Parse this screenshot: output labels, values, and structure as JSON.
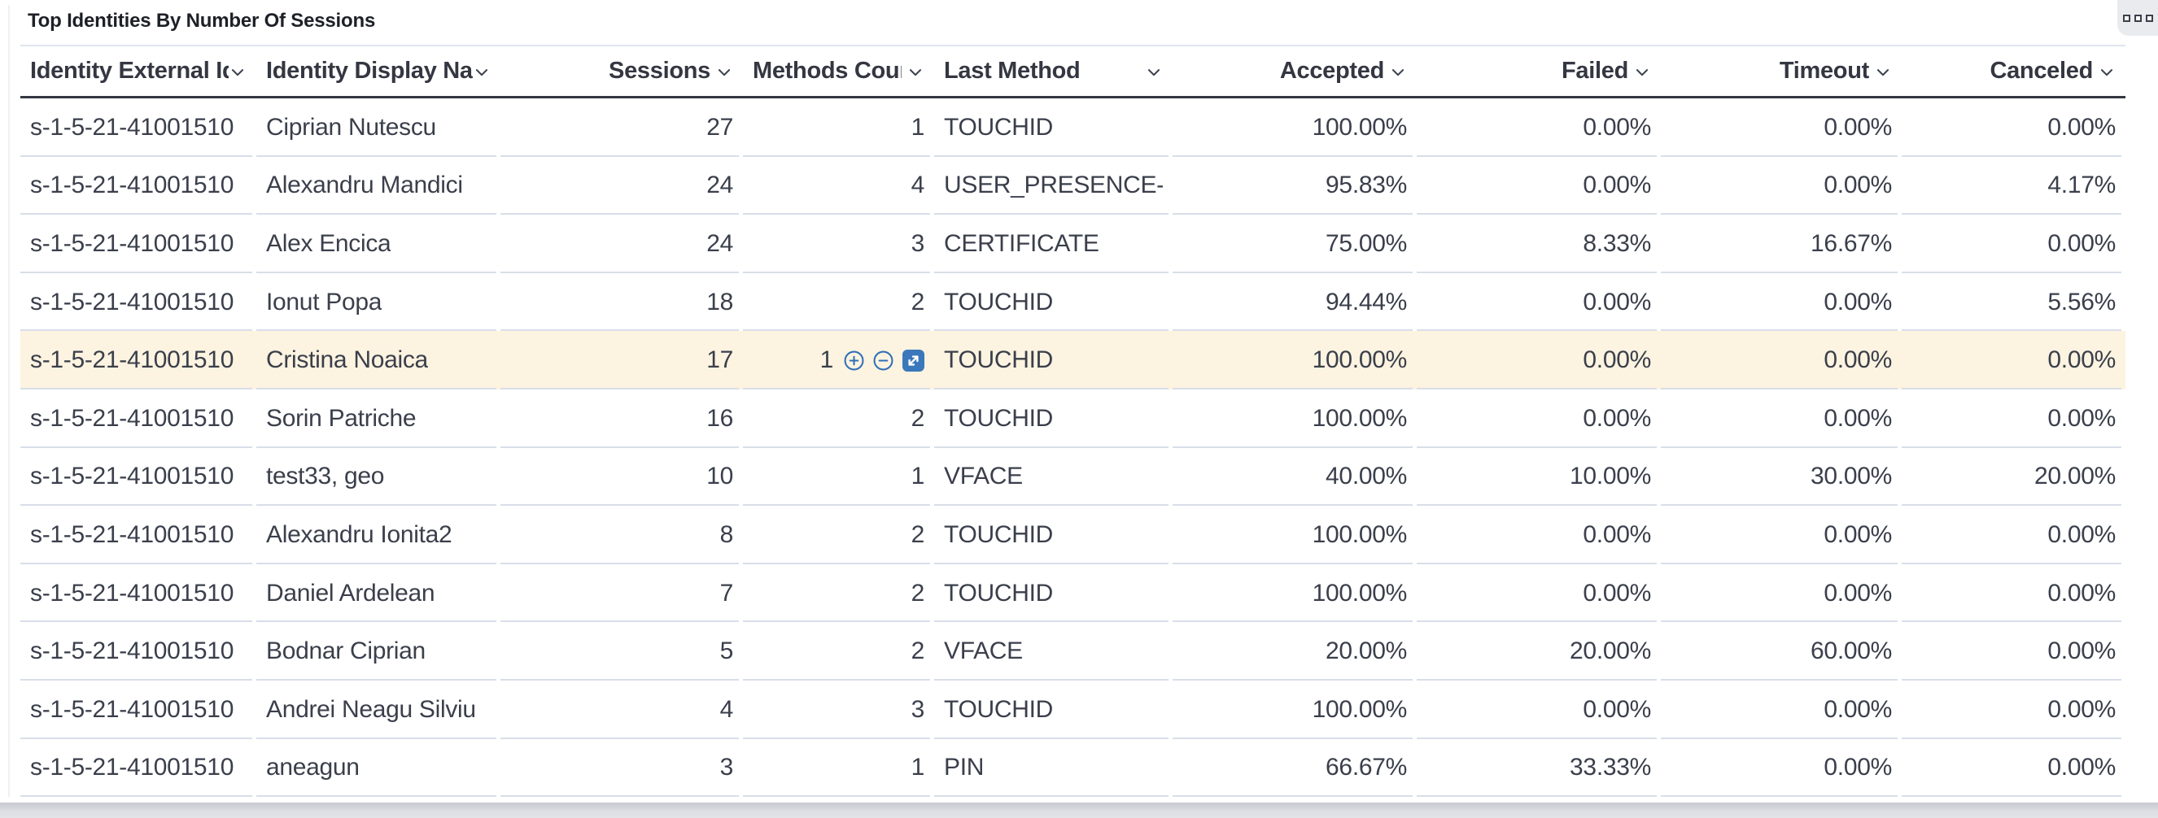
{
  "panel": {
    "title": "Top Identities By Number Of Sessions",
    "options_button_icon": "boxes-menu-icon"
  },
  "colors": {
    "accent_blue": "#2f6fb7",
    "expand_button_fill": "#3a78bb",
    "highlight_row_bg": "#fcf3e0",
    "header_underline": "#343741",
    "row_divider": "#d8dee9",
    "text": "#3a3f4b"
  },
  "table": {
    "columns": [
      {
        "id": "identity-external-id",
        "label": "Identity External Id",
        "align": "left"
      },
      {
        "id": "identity-display-name",
        "label": "Identity Display Name",
        "align": "left"
      },
      {
        "id": "sessions",
        "label": "Sessions",
        "align": "right"
      },
      {
        "id": "methods-count",
        "label": "Methods Count",
        "align": "right"
      },
      {
        "id": "last-method",
        "label": "Last Method",
        "align": "left"
      },
      {
        "id": "accepted",
        "label": "Accepted",
        "align": "right"
      },
      {
        "id": "failed",
        "label": "Failed",
        "align": "right"
      },
      {
        "id": "timeout",
        "label": "Timeout",
        "align": "right"
      },
      {
        "id": "canceled",
        "label": "Canceled",
        "align": "right"
      }
    ],
    "rows": [
      {
        "cells": [
          "s-1-5-21-41001510",
          "Ciprian Nutescu",
          "27",
          "1",
          "TOUCHID",
          "100.00%",
          "0.00%",
          "0.00%",
          "0.00%"
        ]
      },
      {
        "cells": [
          "s-1-5-21-41001510",
          "Alexandru Mandici",
          "24",
          "4",
          "USER_PRESENCE-TOUCHID",
          "95.83%",
          "0.00%",
          "0.00%",
          "4.17%"
        ]
      },
      {
        "cells": [
          "s-1-5-21-41001510",
          "Alex Encica",
          "24",
          "3",
          "CERTIFICATE",
          "75.00%",
          "8.33%",
          "16.67%",
          "0.00%"
        ]
      },
      {
        "cells": [
          "s-1-5-21-41001510",
          "Ionut Popa",
          "18",
          "2",
          "TOUCHID",
          "94.44%",
          "0.00%",
          "0.00%",
          "5.56%"
        ]
      },
      {
        "cells": [
          "s-1-5-21-41001510",
          "Cristina Noaica",
          "17",
          "1",
          "TOUCHID",
          "100.00%",
          "0.00%",
          "0.00%",
          "0.00%"
        ]
      },
      {
        "cells": [
          "s-1-5-21-41001510",
          "Sorin Patriche",
          "16",
          "2",
          "TOUCHID",
          "100.00%",
          "0.00%",
          "0.00%",
          "0.00%"
        ]
      },
      {
        "cells": [
          "s-1-5-21-41001510",
          "test33, geo",
          "10",
          "1",
          "VFACE",
          "40.00%",
          "10.00%",
          "30.00%",
          "20.00%"
        ]
      },
      {
        "cells": [
          "s-1-5-21-41001510",
          "Alexandru Ionita2",
          "8",
          "2",
          "TOUCHID",
          "100.00%",
          "0.00%",
          "0.00%",
          "0.00%"
        ]
      },
      {
        "cells": [
          "s-1-5-21-41001510",
          "Daniel Ardelean",
          "7",
          "2",
          "TOUCHID",
          "100.00%",
          "0.00%",
          "0.00%",
          "0.00%"
        ]
      },
      {
        "cells": [
          "s-1-5-21-41001510",
          "Bodnar Ciprian",
          "5",
          "2",
          "VFACE",
          "20.00%",
          "20.00%",
          "60.00%",
          "0.00%"
        ]
      },
      {
        "cells": [
          "s-1-5-21-41001510",
          "Andrei Neagu Silviu",
          "4",
          "3",
          "TOUCHID",
          "100.00%",
          "0.00%",
          "0.00%",
          "0.00%"
        ]
      },
      {
        "cells": [
          "s-1-5-21-41001510",
          "aneagun",
          "3",
          "1",
          "PIN",
          "66.67%",
          "33.33%",
          "0.00%",
          "0.00%"
        ]
      }
    ],
    "highlighted_row": 4,
    "hover_actions": {
      "row": 4,
      "column": "methods-count",
      "icons": [
        "zoom-in-icon",
        "zoom-out-icon",
        "expand-cell-icon"
      ]
    }
  }
}
